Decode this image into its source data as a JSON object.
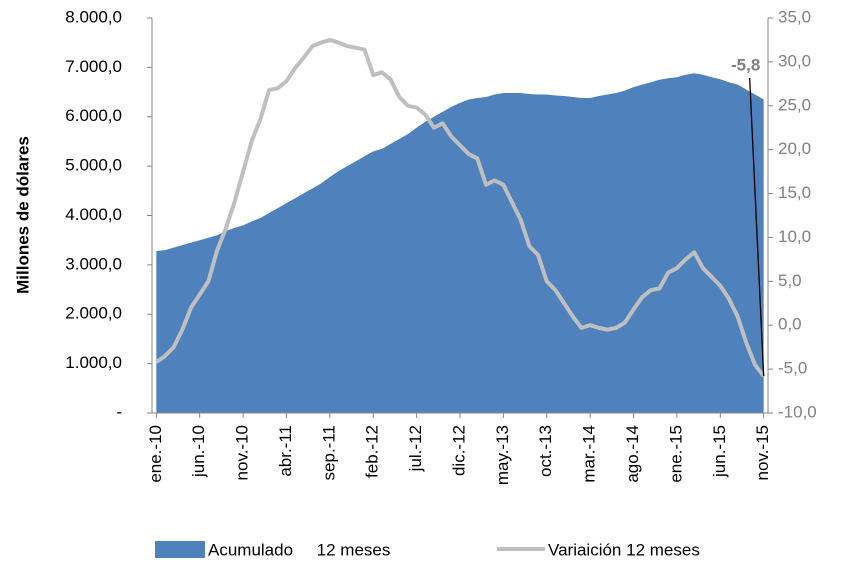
{
  "chart_data": {
    "type": "area_line",
    "y_label": "Millones de dólares",
    "categories": [
      "ene.-10",
      null,
      null,
      null,
      null,
      "jun.-10",
      null,
      null,
      null,
      null,
      "nov.-10",
      null,
      null,
      null,
      null,
      "abr.-11",
      null,
      null,
      null,
      null,
      "sep.-11",
      null,
      null,
      null,
      null,
      "feb.-12",
      null,
      null,
      null,
      null,
      "jul.-12",
      null,
      null,
      null,
      null,
      "dic.-12",
      null,
      null,
      null,
      null,
      "may.-13",
      null,
      null,
      null,
      null,
      "oct.-13",
      null,
      null,
      null,
      null,
      "mar.-14",
      null,
      null,
      null,
      null,
      "ago.-14",
      null,
      null,
      null,
      null,
      "ene.-15",
      null,
      null,
      null,
      null,
      "jun.-15",
      null,
      null,
      null,
      null,
      "nov.-15"
    ],
    "series": [
      {
        "name": "Acumulado     12 meses",
        "color": "#4f81bd",
        "kind": "area",
        "values": [
          3280,
          3300,
          3350,
          3400,
          3450,
          3500,
          3550,
          3600,
          3680,
          3750,
          3800,
          3880,
          3950,
          4050,
          4150,
          4250,
          4350,
          4450,
          4550,
          4650,
          4780,
          4900,
          5000,
          5100,
          5200,
          5300,
          5350,
          5450,
          5550,
          5650,
          5780,
          5900,
          6000,
          6100,
          6200,
          6280,
          6350,
          6380,
          6400,
          6450,
          6480,
          6480,
          6480,
          6460,
          6450,
          6450,
          6430,
          6420,
          6400,
          6380,
          6380,
          6420,
          6450,
          6480,
          6530,
          6600,
          6650,
          6700,
          6750,
          6780,
          6800,
          6850,
          6880,
          6850,
          6800,
          6760,
          6700,
          6650,
          6550,
          6450,
          6350
        ]
      },
      {
        "name": "Variaición 12 meses",
        "color": "#bfbfbf",
        "kind": "line",
        "axis": "y2",
        "values": [
          -4.2,
          -3.5,
          -2.5,
          -0.5,
          2,
          3.5,
          5,
          8.5,
          11,
          14,
          17.5,
          21,
          23.5,
          26.8,
          27,
          27.8,
          29.3,
          30.5,
          31.8,
          32.2,
          32.5,
          32.2,
          31.8,
          31.6,
          31.4,
          28.5,
          28.8,
          28,
          26,
          25,
          24.8,
          24,
          22.5,
          23,
          21.5,
          20.5,
          19.5,
          19,
          16,
          16.5,
          16,
          14,
          12,
          9,
          8,
          5,
          4,
          2.5,
          1,
          -0.3,
          0,
          -0.3,
          -0.5,
          -0.3,
          0.3,
          1.8,
          3.2,
          4,
          4.2,
          6,
          6.5,
          7.5,
          8.3,
          6.5,
          5.5,
          4.5,
          3,
          1,
          -2,
          -4.5,
          -5.8
        ],
        "value_labels": [
          null,
          null,
          null,
          null,
          null,
          null,
          null,
          null,
          null,
          null,
          null,
          null,
          null,
          null,
          null,
          null,
          null,
          null,
          null,
          null,
          null,
          null,
          null,
          null,
          null,
          null,
          null,
          null,
          null,
          null,
          null,
          null,
          null,
          null,
          null,
          null,
          null,
          null,
          null,
          null,
          null,
          null,
          null,
          null,
          null,
          null,
          null,
          null,
          null,
          null,
          null,
          null,
          null,
          null,
          null,
          null,
          null,
          null,
          null,
          null,
          null,
          null,
          null,
          null,
          null,
          null,
          null,
          null,
          null,
          null,
          "-5,8"
        ]
      }
    ],
    "ylim": [
      0,
      8000
    ],
    "yticks": [
      {
        "value": 0,
        "label": "-"
      },
      {
        "value": 1000,
        "label": "1.000,0"
      },
      {
        "value": 2000,
        "label": "2.000,0"
      },
      {
        "value": 3000,
        "label": "3.000,0"
      },
      {
        "value": 4000,
        "label": "4.000,0"
      },
      {
        "value": 5000,
        "label": "5.000,0"
      },
      {
        "value": 6000,
        "label": "6.000,0"
      },
      {
        "value": 7000,
        "label": "7.000,0"
      },
      {
        "value": 8000,
        "label": "8.000,0"
      }
    ],
    "y2lim": [
      -10,
      35
    ],
    "y2ticks": [
      {
        "value": -10,
        "label": "-10,0"
      },
      {
        "value": -5,
        "label": "-5,0"
      },
      {
        "value": 0,
        "label": "0,0"
      },
      {
        "value": 5,
        "label": "5,0"
      },
      {
        "value": 10,
        "label": "10,0"
      },
      {
        "value": 15,
        "label": "15,0"
      },
      {
        "value": 20,
        "label": "20,0"
      },
      {
        "value": 25,
        "label": "25,0"
      },
      {
        "value": 30,
        "label": "30,0"
      },
      {
        "value": 35,
        "label": "35,0"
      }
    ],
    "legend": "bottom"
  }
}
